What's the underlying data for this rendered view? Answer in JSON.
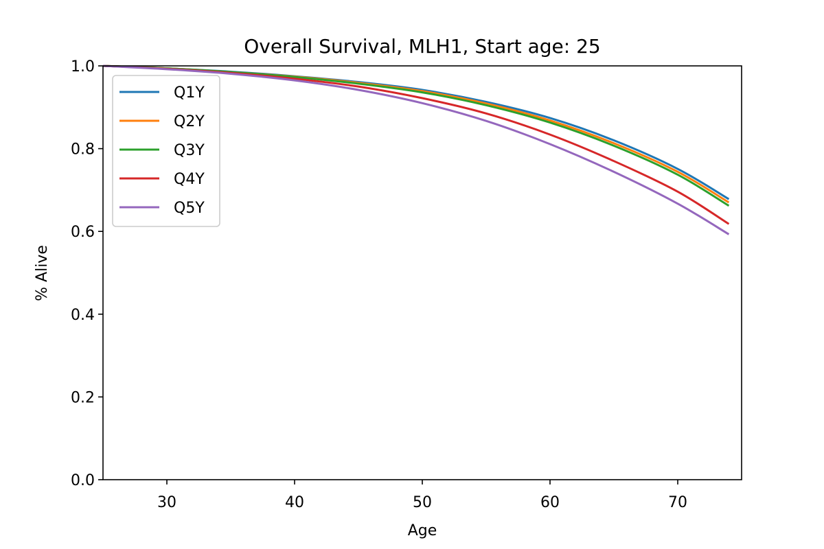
{
  "chart_data": {
    "type": "line",
    "title": "Overall Survival, MLH1, Start age: 25",
    "xlabel": "Age",
    "ylabel": "% Alive",
    "xlim": [
      25,
      75
    ],
    "ylim": [
      0.0,
      1.0
    ],
    "xticks": [
      30,
      40,
      50,
      60,
      70
    ],
    "yticks": [
      0.0,
      0.2,
      0.4,
      0.6,
      0.8,
      1.0
    ],
    "ytick_labels": [
      "0.0",
      "0.2",
      "0.4",
      "0.6",
      "0.8",
      "1.0"
    ],
    "grid": false,
    "legend": "upper-left",
    "x": [
      25,
      30,
      35,
      40,
      45,
      50,
      55,
      60,
      65,
      70,
      74
    ],
    "series": [
      {
        "name": "Q1Y",
        "color": "#1f77b4",
        "values": [
          1.0,
          0.994,
          0.986,
          0.975,
          0.961,
          0.942,
          0.913,
          0.874,
          0.82,
          0.751,
          0.678
        ]
      },
      {
        "name": "Q2Y",
        "color": "#ff7f0e",
        "values": [
          1.0,
          0.994,
          0.985,
          0.974,
          0.959,
          0.939,
          0.909,
          0.868,
          0.813,
          0.744,
          0.67
        ]
      },
      {
        "name": "Q3Y",
        "color": "#2ca02c",
        "values": [
          1.0,
          0.994,
          0.985,
          0.973,
          0.957,
          0.936,
          0.905,
          0.863,
          0.807,
          0.737,
          0.662
        ]
      },
      {
        "name": "Q4Y",
        "color": "#d62728",
        "values": [
          1.0,
          0.993,
          0.983,
          0.969,
          0.95,
          0.922,
          0.885,
          0.834,
          0.77,
          0.696,
          0.618
        ]
      },
      {
        "name": "Q5Y",
        "color": "#9467bd",
        "values": [
          1.0,
          0.992,
          0.981,
          0.965,
          0.942,
          0.91,
          0.867,
          0.811,
          0.744,
          0.667,
          0.593
        ]
      }
    ]
  }
}
